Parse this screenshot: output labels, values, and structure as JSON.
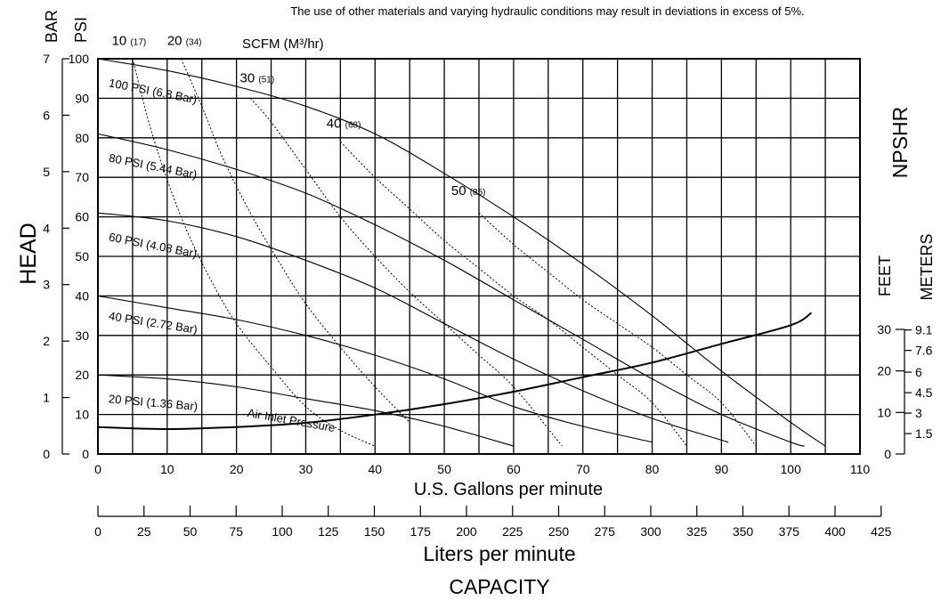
{
  "header_note": "The use of other materials and varying hydraulic conditions may result in deviations in excess of 5%.",
  "labels": {
    "bar": "BAR",
    "psi": "PSI",
    "head": "HEAD",
    "npshr": "NPSHR",
    "feet": "FEET",
    "meters": "METERS",
    "x_gpm": "U.S. Gallons per minute",
    "x_lpm": "Liters per minute",
    "capacity": "CAPACITY",
    "scfm": "SCFM (M³/hr)",
    "air_inlet": "Air Inlet Pressure"
  },
  "chart_data": {
    "type": "line",
    "xlabel": "U.S. Gallons per minute",
    "xlim": [
      0,
      110
    ],
    "ylim": [
      0,
      100
    ],
    "x_ticks": [
      "0",
      "10",
      "20",
      "30",
      "40",
      "50",
      "60",
      "70",
      "80",
      "90",
      "100",
      "110"
    ],
    "psi_ticks": [
      "0",
      "10",
      "20",
      "30",
      "40",
      "50",
      "60",
      "70",
      "80",
      "90",
      "100"
    ],
    "bar_ticks": [
      "0",
      "1",
      "2",
      "3",
      "4",
      "5",
      "6",
      "7"
    ],
    "lpm_ticks": [
      "0",
      "25",
      "50",
      "75",
      "100",
      "125",
      "150",
      "175",
      "200",
      "225",
      "250",
      "275",
      "300",
      "325",
      "350",
      "375",
      "400",
      "425"
    ],
    "npsh_feet_ticks": [
      "0",
      "10",
      "20",
      "30"
    ],
    "npsh_meter_ticks": [
      "1.5",
      "3",
      "4.5",
      "6",
      "7.6",
      "9.1"
    ],
    "pressure_curves": [
      {
        "name": "100 PSI (6.8 Bar)",
        "x": [
          0,
          10,
          20,
          30,
          40,
          50,
          60,
          70,
          80,
          90,
          100,
          105
        ],
        "y": [
          100,
          97,
          93,
          88,
          81,
          71,
          60,
          48,
          35,
          21,
          8,
          2
        ]
      },
      {
        "name": "80 PSI (5.44 Bar)",
        "x": [
          0,
          10,
          20,
          30,
          40,
          50,
          60,
          70,
          80,
          90,
          100,
          102
        ],
        "y": [
          81,
          77,
          72,
          66,
          58,
          49,
          39,
          29,
          19,
          10,
          3,
          2
        ]
      },
      {
        "name": "60 PSI (4.08 Bar)",
        "x": [
          0,
          10,
          20,
          30,
          40,
          50,
          60,
          70,
          80,
          91
        ],
        "y": [
          61,
          59,
          55,
          49,
          42,
          33,
          24,
          16,
          9,
          3
        ]
      },
      {
        "name": "40 PSI (2.72 Bar)",
        "x": [
          0,
          10,
          20,
          30,
          40,
          50,
          60,
          70,
          80
        ],
        "y": [
          40,
          37,
          34,
          30,
          25,
          19,
          12,
          7,
          3
        ]
      },
      {
        "name": "20 PSI (1.36 Bar)",
        "x": [
          0,
          10,
          20,
          30,
          40,
          50,
          60
        ],
        "y": [
          20,
          19,
          17,
          14,
          11,
          7,
          2
        ]
      }
    ],
    "air_curves": [
      {
        "name": "10",
        "m3hr": "(17)",
        "x": [
          5,
          8,
          12,
          16,
          20,
          25,
          30,
          35,
          40
        ],
        "y": [
          100,
          80,
          60,
          45,
          33,
          22,
          12,
          6,
          2
        ]
      },
      {
        "name": "20",
        "m3hr": "(34)",
        "x": [
          12,
          15,
          18,
          22,
          26,
          30,
          35,
          40,
          45
        ],
        "y": [
          100,
          88,
          75,
          61,
          49,
          38,
          27,
          17,
          8
        ]
      },
      {
        "name": "30",
        "m3hr": "(51)",
        "x": [
          22,
          25,
          30,
          35,
          40,
          45,
          50,
          55,
          60,
          67
        ],
        "y": [
          90,
          84,
          72,
          60,
          50,
          41,
          33,
          25,
          17,
          2
        ]
      },
      {
        "name": "40",
        "m3hr": "(68)",
        "x": [
          35,
          40,
          45,
          50,
          55,
          60,
          65,
          70,
          75,
          80,
          85
        ],
        "y": [
          79,
          70,
          62,
          54,
          47,
          40,
          34,
          27,
          20,
          13,
          2
        ]
      },
      {
        "name": "50",
        "m3hr": "(85)",
        "x": [
          55,
          60,
          65,
          70,
          75,
          80,
          85,
          90,
          95
        ],
        "y": [
          61,
          53,
          46,
          39,
          33,
          27,
          20,
          13,
          2
        ]
      }
    ],
    "npshr": {
      "name": "NPSHR",
      "x": [
        0,
        10,
        20,
        30,
        40,
        50,
        60,
        70,
        80,
        90,
        100,
        103
      ],
      "y": [
        6.5,
        6,
        6.5,
        7.5,
        9.5,
        12,
        15,
        18.5,
        22,
        26.5,
        31,
        34
      ]
    }
  }
}
